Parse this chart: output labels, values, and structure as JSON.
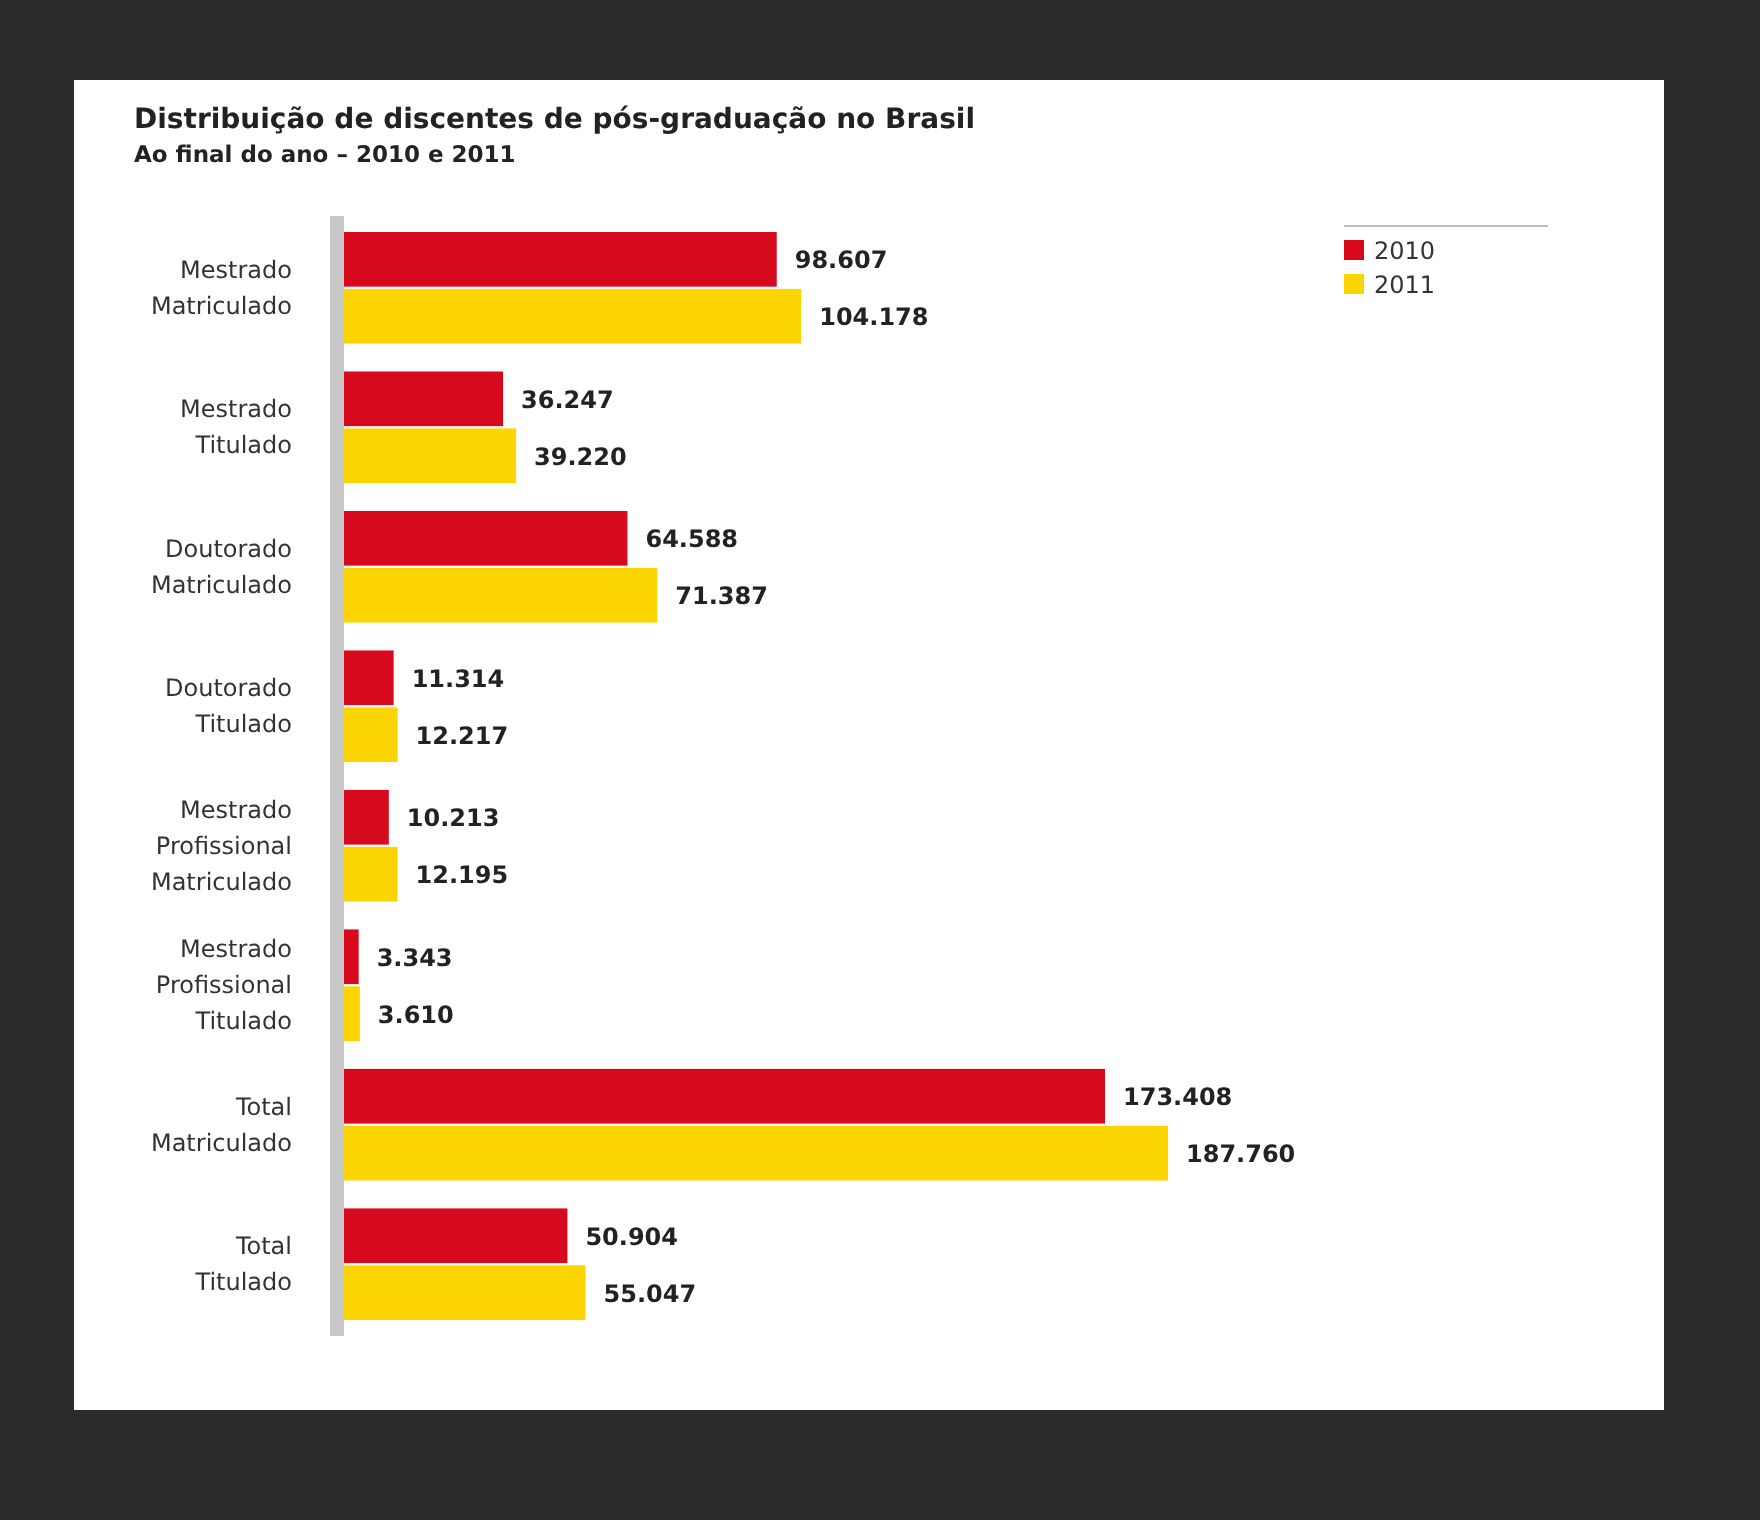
{
  "chart_data": {
    "type": "bar",
    "orientation": "horizontal",
    "title": "Distribuição de discentes de pós-graduação no Brasil",
    "subtitle": "Ao final do ano – 2010 e 2011",
    "categories": [
      "Mestrado Matriculado",
      "Mestrado Titulado",
      "Doutorado Matriculado",
      "Doutorado Titulado",
      "Mestrado Profissional Matriculado",
      "Mestrado Profissional Titulado",
      "Total Matriculado",
      "Total Titulado"
    ],
    "series": [
      {
        "name": "2010",
        "color": "#d7091d",
        "values": [
          98607,
          36247,
          64588,
          11314,
          10213,
          3343,
          173408,
          50904
        ],
        "value_labels": [
          "98.607",
          "36.247",
          "64.588",
          "11.314",
          "10.213",
          "3.343",
          "173.408",
          "50.904"
        ]
      },
      {
        "name": "2011",
        "color": "#fcd500",
        "values": [
          104178,
          39220,
          71387,
          12217,
          12195,
          3610,
          187760,
          55047
        ],
        "value_labels": [
          "104.178",
          "39.220",
          "71.387",
          "12.217",
          "12.195",
          "3.610",
          "187.760",
          "55.047"
        ]
      }
    ],
    "relative": false,
    "legend": "top right"
  }
}
